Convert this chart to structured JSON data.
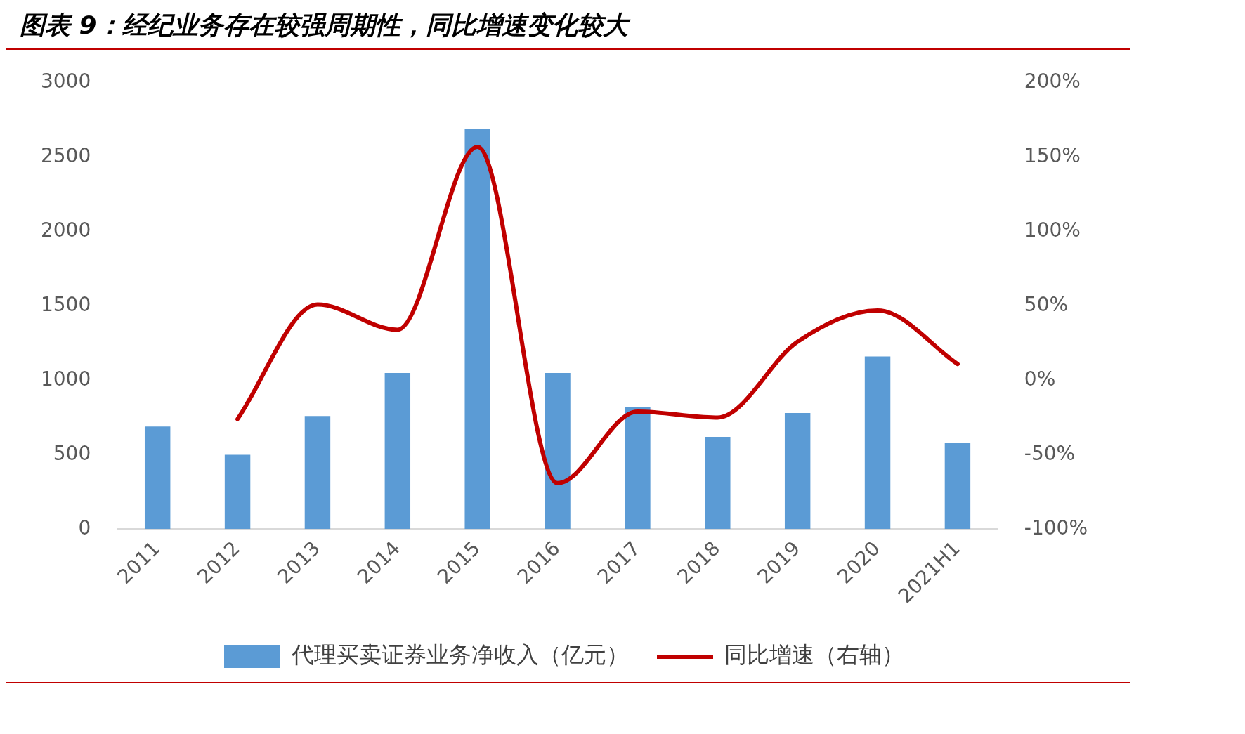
{
  "chart_data": {
    "type": "bar",
    "title": "图表 9：经纪业务存在较强周期性，同比增速变化较大",
    "categories": [
      "2011",
      "2012",
      "2013",
      "2014",
      "2015",
      "2016",
      "2017",
      "2018",
      "2019",
      "2020",
      "2021H1"
    ],
    "series": [
      {
        "name": "代理买卖证券业务净收入（亿元）",
        "color": "#5b9bd5",
        "values": [
          690,
          500,
          760,
          1050,
          2690,
          1050,
          820,
          620,
          780,
          1160,
          580
        ]
      },
      {
        "name": "同比增速（右轴）",
        "type": "line",
        "axis": "y2",
        "color": "#c00000",
        "values": [
          null,
          -26,
          51,
          34,
          157,
          -69,
          -21,
          -25,
          26,
          47,
          11
        ]
      }
    ],
    "ylim": [
      0,
      3000
    ],
    "yticks": [
      0,
      500,
      1000,
      1500,
      2000,
      2500,
      3000
    ],
    "y2lim": [
      -100,
      200
    ],
    "y2ticks": [
      {
        "value": -100,
        "label": "-100%"
      },
      {
        "value": -50,
        "label": "-50%"
      },
      {
        "value": 0,
        "label": "0%"
      },
      {
        "value": 50,
        "label": "50%"
      },
      {
        "value": 100,
        "label": "100%"
      },
      {
        "value": 150,
        "label": "150%"
      },
      {
        "value": 200,
        "label": "200%"
      }
    ],
    "grid": false,
    "legend": "bottom"
  }
}
